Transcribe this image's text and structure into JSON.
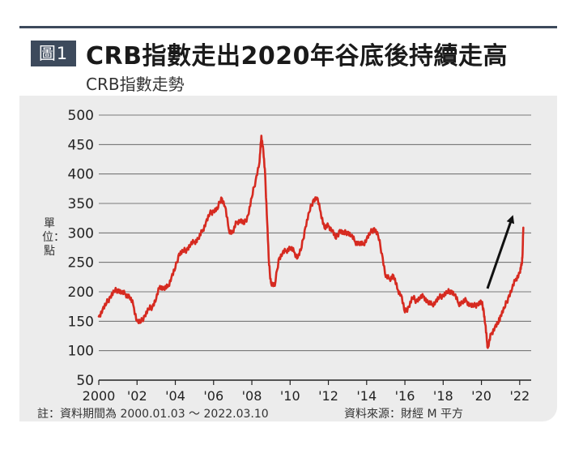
{
  "figure": {
    "badge": "圖1",
    "title": "CRB指數走出2020年谷底後持續走高",
    "subtitle": "CRB指數走勢"
  },
  "footer": {
    "note": "註：資料期間為 2000.01.03 ～ 2022.03.10",
    "source": "資料來源：財經 M 平方"
  },
  "colors": {
    "line": "#d62a20",
    "header": "#3d4a5c",
    "plot_background": "#ececec",
    "arrow": "#111111"
  },
  "chart_data": {
    "type": "line",
    "title": "CRB指數走勢",
    "ylabel": "單位：點",
    "xlabel": "",
    "ylim": [
      50,
      500
    ],
    "xlim": [
      2000,
      2022.6
    ],
    "yticks": [
      50,
      100,
      150,
      200,
      250,
      300,
      350,
      400,
      450,
      500
    ],
    "yticklabels": [
      "50",
      "100",
      "150",
      "200",
      "250",
      "300",
      "350",
      "400",
      "450",
      "500"
    ],
    "xticks": [
      2000,
      2002,
      2004,
      2006,
      2008,
      2010,
      2012,
      2014,
      2016,
      2018,
      2020,
      2022
    ],
    "xticklabels": [
      "2000",
      "'02",
      "'04",
      "'06",
      "'08",
      "'10",
      "'12",
      "'14",
      "'16",
      "'18",
      "'20",
      "'22"
    ],
    "grid": "horizontal",
    "annotation": "upward arrow indicating rising trend after the 2020 low",
    "series": [
      {
        "points": [
          [
            2000.0,
            158
          ],
          [
            2000.2,
            170
          ],
          [
            2000.4,
            180
          ],
          [
            2000.6,
            192
          ],
          [
            2000.8,
            200
          ],
          [
            2001.0,
            204
          ],
          [
            2001.2,
            198
          ],
          [
            2001.4,
            196
          ],
          [
            2001.6,
            192
          ],
          [
            2001.8,
            178
          ],
          [
            2002.0,
            150
          ],
          [
            2002.2,
            148
          ],
          [
            2002.4,
            160
          ],
          [
            2002.6,
            170
          ],
          [
            2002.8,
            175
          ],
          [
            2003.0,
            188
          ],
          [
            2003.2,
            210
          ],
          [
            2003.4,
            205
          ],
          [
            2003.6,
            208
          ],
          [
            2003.8,
            225
          ],
          [
            2004.0,
            240
          ],
          [
            2004.2,
            265
          ],
          [
            2004.4,
            268
          ],
          [
            2004.6,
            272
          ],
          [
            2004.8,
            280
          ],
          [
            2005.0,
            285
          ],
          [
            2005.2,
            290
          ],
          [
            2005.4,
            302
          ],
          [
            2005.6,
            318
          ],
          [
            2005.8,
            332
          ],
          [
            2006.0,
            338
          ],
          [
            2006.2,
            340
          ],
          [
            2006.4,
            360
          ],
          [
            2006.6,
            345
          ],
          [
            2006.8,
            305
          ],
          [
            2007.0,
            300
          ],
          [
            2007.2,
            318
          ],
          [
            2007.4,
            322
          ],
          [
            2007.6,
            315
          ],
          [
            2007.8,
            330
          ],
          [
            2008.0,
            360
          ],
          [
            2008.2,
            390
          ],
          [
            2008.4,
            420
          ],
          [
            2008.5,
            465
          ],
          [
            2008.6,
            440
          ],
          [
            2008.7,
            395
          ],
          [
            2008.8,
            320
          ],
          [
            2008.9,
            245
          ],
          [
            2009.0,
            215
          ],
          [
            2009.2,
            210
          ],
          [
            2009.4,
            255
          ],
          [
            2009.6,
            265
          ],
          [
            2009.8,
            270
          ],
          [
            2010.0,
            275
          ],
          [
            2010.2,
            268
          ],
          [
            2010.4,
            258
          ],
          [
            2010.6,
            275
          ],
          [
            2010.8,
            310
          ],
          [
            2011.0,
            335
          ],
          [
            2011.2,
            355
          ],
          [
            2011.4,
            360
          ],
          [
            2011.6,
            335
          ],
          [
            2011.8,
            308
          ],
          [
            2012.0,
            312
          ],
          [
            2012.2,
            305
          ],
          [
            2012.4,
            290
          ],
          [
            2012.6,
            305
          ],
          [
            2012.8,
            298
          ],
          [
            2013.0,
            302
          ],
          [
            2013.2,
            295
          ],
          [
            2013.4,
            285
          ],
          [
            2013.6,
            282
          ],
          [
            2013.8,
            280
          ],
          [
            2014.0,
            290
          ],
          [
            2014.2,
            300
          ],
          [
            2014.4,
            308
          ],
          [
            2014.6,
            295
          ],
          [
            2014.8,
            265
          ],
          [
            2015.0,
            225
          ],
          [
            2015.2,
            222
          ],
          [
            2015.4,
            228
          ],
          [
            2015.6,
            205
          ],
          [
            2015.8,
            195
          ],
          [
            2016.0,
            165
          ],
          [
            2016.2,
            175
          ],
          [
            2016.4,
            190
          ],
          [
            2016.6,
            185
          ],
          [
            2016.8,
            190
          ],
          [
            2017.0,
            192
          ],
          [
            2017.2,
            182
          ],
          [
            2017.4,
            178
          ],
          [
            2017.6,
            183
          ],
          [
            2017.8,
            190
          ],
          [
            2018.0,
            195
          ],
          [
            2018.2,
            198
          ],
          [
            2018.4,
            202
          ],
          [
            2018.6,
            195
          ],
          [
            2018.8,
            180
          ],
          [
            2019.0,
            182
          ],
          [
            2019.2,
            185
          ],
          [
            2019.4,
            178
          ],
          [
            2019.6,
            175
          ],
          [
            2019.8,
            180
          ],
          [
            2020.0,
            182
          ],
          [
            2020.1,
            172
          ],
          [
            2020.2,
            145
          ],
          [
            2020.3,
            112
          ],
          [
            2020.35,
            106
          ],
          [
            2020.5,
            128
          ],
          [
            2020.7,
            140
          ],
          [
            2020.9,
            148
          ],
          [
            2021.0,
            160
          ],
          [
            2021.2,
            172
          ],
          [
            2021.4,
            190
          ],
          [
            2021.6,
            205
          ],
          [
            2021.8,
            222
          ],
          [
            2022.0,
            232
          ],
          [
            2022.1,
            245
          ],
          [
            2022.15,
            265
          ],
          [
            2022.19,
            309
          ]
        ]
      }
    ]
  }
}
